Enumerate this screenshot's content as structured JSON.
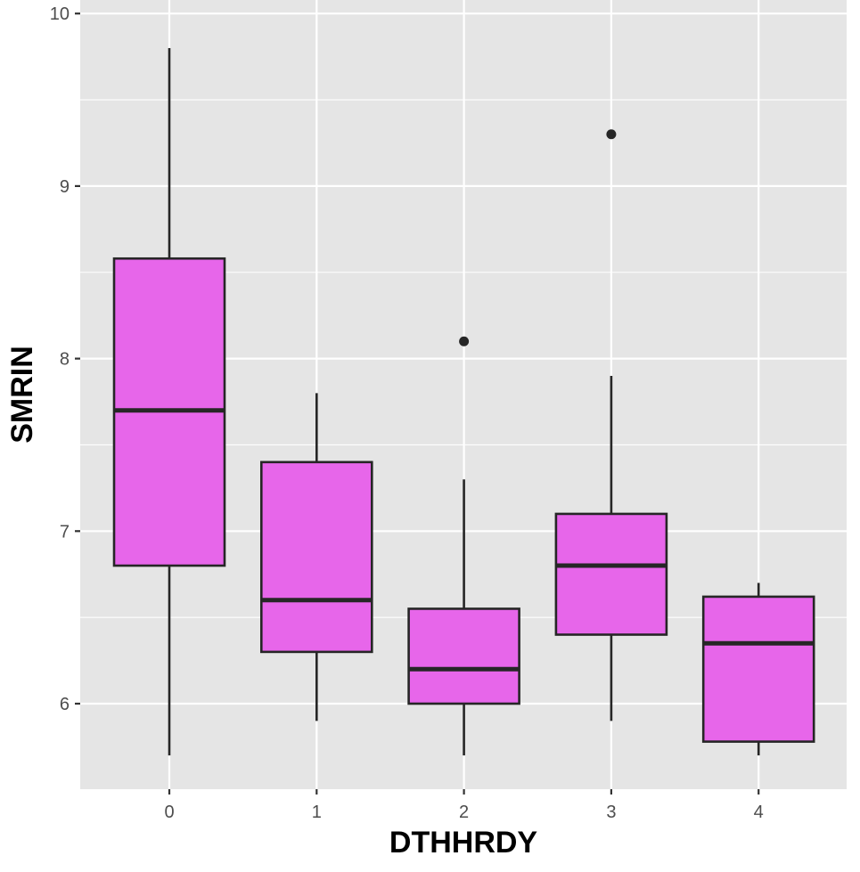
{
  "chart_data": {
    "type": "boxplot",
    "title": "",
    "xlabel": "DTHHRDY",
    "ylabel": "SMRIN",
    "categories": [
      "0",
      "1",
      "2",
      "3",
      "4"
    ],
    "ylim": [
      5.5,
      10.0
    ],
    "yticks": [
      6,
      7,
      8,
      9,
      10
    ],
    "grid": true,
    "legend": "none",
    "box_fill": "#E766EA",
    "box_stroke": "#262626",
    "panel_bg": "#E5E5E5",
    "boxes": [
      {
        "category": "0",
        "whisker_low": 5.7,
        "q1": 6.8,
        "median": 7.7,
        "q3": 8.58,
        "whisker_high": 9.8,
        "outliers": []
      },
      {
        "category": "1",
        "whisker_low": 5.9,
        "q1": 6.3,
        "median": 6.6,
        "q3": 7.4,
        "whisker_high": 7.8,
        "outliers": []
      },
      {
        "category": "2",
        "whisker_low": 5.7,
        "q1": 6.0,
        "median": 6.2,
        "q3": 6.55,
        "whisker_high": 7.3,
        "outliers": [
          8.1
        ]
      },
      {
        "category": "3",
        "whisker_low": 5.9,
        "q1": 6.4,
        "median": 6.8,
        "q3": 7.1,
        "whisker_high": 7.9,
        "outliers": [
          9.3
        ]
      },
      {
        "category": "4",
        "whisker_low": 5.7,
        "q1": 5.78,
        "median": 6.35,
        "q3": 6.62,
        "whisker_high": 6.7,
        "outliers": []
      }
    ]
  }
}
